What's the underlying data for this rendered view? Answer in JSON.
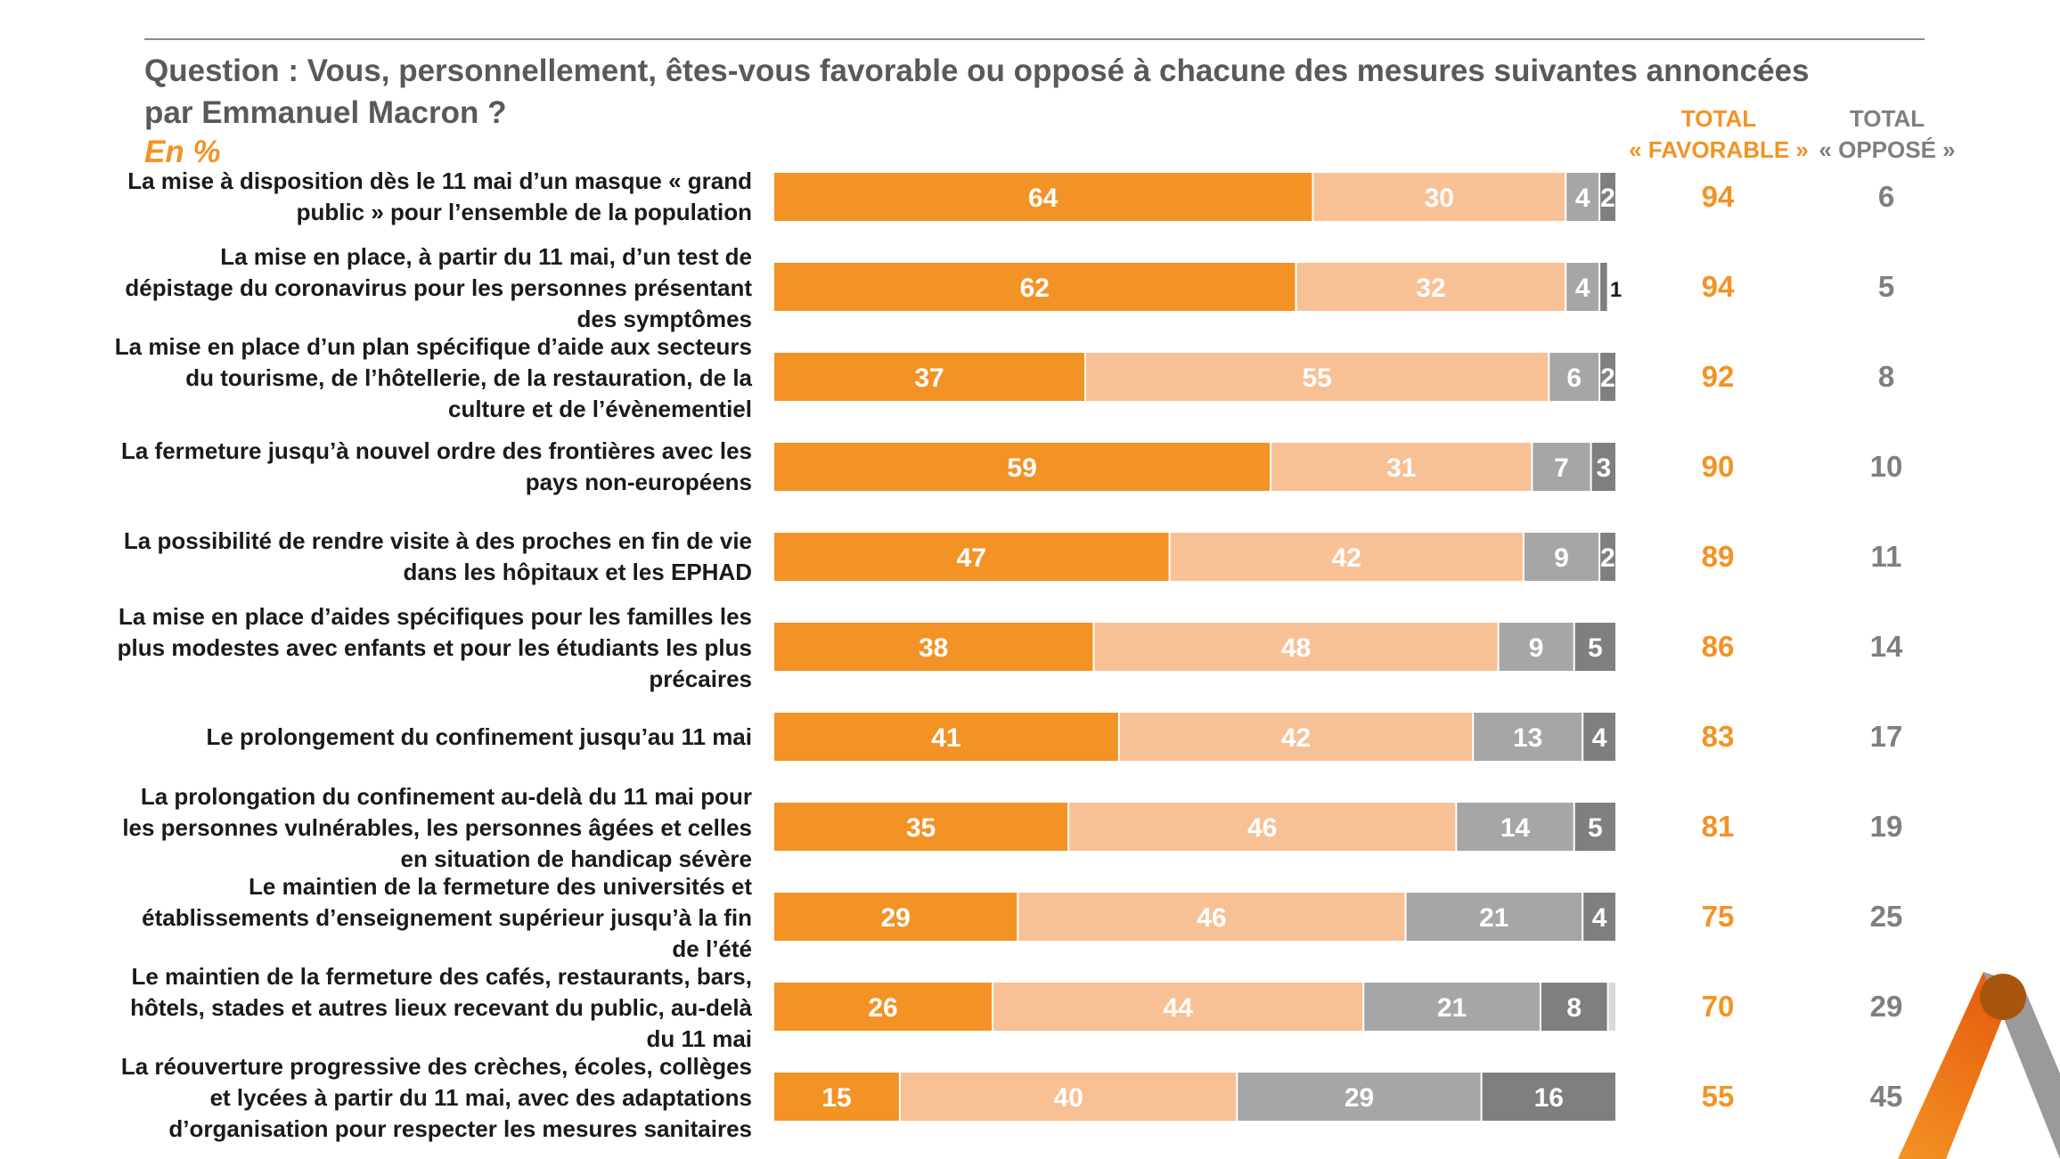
{
  "header": {
    "question": "Question : Vous, personnellement, êtes-vous favorable ou opposé à chacune des mesures suivantes annoncées par Emmanuel Macron ?",
    "unit": "En %",
    "total_favorable_line1": "TOTAL",
    "total_favorable_line2": "« FAVORABLE »",
    "total_oppose_line1": "TOTAL",
    "total_oppose_line2": "« OPPOSÉ »"
  },
  "colors": {
    "tout_a_fait_favorable": "#F39325",
    "plutot_favorable": "#F8C195",
    "plutot_oppose": "#A6A6A6",
    "tout_a_fait_oppose": "#7F7F7F",
    "total_favorable": "#F39325",
    "total_oppose": "#7F7F7F"
  },
  "chart_data": {
    "type": "bar",
    "orientation": "horizontal",
    "stacked": true,
    "xlim": [
      0,
      100
    ],
    "categories": [
      "La mise à disposition dès le 11 mai d’un masque « grand public » pour l’ensemble de la population",
      "La mise en place, à partir du 11 mai, d’un test de dépistage du coronavirus pour les personnes présentant des symptômes",
      "La mise en place d’un plan spécifique d’aide aux secteurs du tourisme, de l’hôtellerie, de la restauration, de la culture et de l’évènementiel",
      "La fermeture jusqu’à nouvel ordre des frontières avec les pays non-européens",
      "La possibilité de rendre visite à des proches en fin de vie dans les hôpitaux et les EPHAD",
      "La mise en place d’aides spécifiques pour les familles les plus modestes avec enfants et pour les étudiants les plus précaires",
      "Le prolongement du confinement jusqu’au 11 mai",
      "La prolongation du confinement au-delà du 11 mai pour les personnes vulnérables, les personnes âgées et celles en situation de handicap sévère",
      "Le maintien de la fermeture des universités et établissements d’enseignement supérieur jusqu’à la fin de l’été",
      "Le maintien de la fermeture des cafés, restaurants, bars, hôtels, stades et autres lieux recevant du public, au-delà du 11 mai",
      "La réouverture progressive des crèches, écoles, collèges et lycées à partir du 11 mai, avec des adaptations d’organisation pour respecter les mesures sanitaires"
    ],
    "series": [
      {
        "values": [
          64,
          62,
          37,
          59,
          47,
          38,
          41,
          35,
          29,
          26,
          15
        ]
      },
      {
        "values": [
          30,
          32,
          55,
          31,
          42,
          48,
          42,
          46,
          46,
          44,
          40
        ]
      },
      {
        "values": [
          4,
          4,
          6,
          7,
          9,
          9,
          13,
          14,
          21,
          21,
          29
        ]
      },
      {
        "values": [
          2,
          1,
          2,
          3,
          2,
          5,
          4,
          5,
          4,
          8,
          16
        ]
      }
    ],
    "remainder": [
      0,
      0,
      0,
      0,
      0,
      0,
      0,
      0,
      0,
      1,
      0
    ],
    "total_favorable": [
      94,
      94,
      92,
      90,
      89,
      86,
      83,
      81,
      75,
      70,
      55
    ],
    "total_oppose": [
      6,
      5,
      8,
      10,
      11,
      14,
      17,
      19,
      25,
      29,
      45
    ]
  }
}
